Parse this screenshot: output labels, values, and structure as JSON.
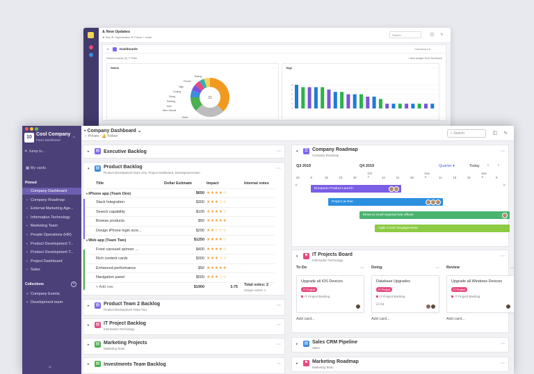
{
  "bg": {
    "title": "& New Updates",
    "subtitle": "★ Star  ⊕ Organization  ⊕ Follow  + Invite",
    "search": "Search",
    "dashboard_title": "Dashboards",
    "dashboard_select": "Dashboard ▾",
    "filter_left": "Select boards (2)   ▽ Filter",
    "filter_right": "+ Add widget   Give feedback",
    "card1_title": "Status",
    "card2_title": "Tags",
    "donut_center": "21",
    "donut_labels": [
      "Testing",
      "Frozen",
      "High",
      "Coding",
      "Doing",
      "Reeting",
      "Mini",
      "New Jobunit",
      "Done"
    ],
    "bar_axis": "Count",
    "bar_values": [
      10,
      9,
      9,
      9,
      9,
      8,
      7,
      7,
      6,
      6,
      6,
      5,
      5,
      4,
      2,
      2,
      2,
      2,
      2,
      2,
      2,
      2
    ],
    "bar_colors": [
      "#1f7bd6",
      "#2bb34a",
      "#7a55d8",
      "#1f7bd6",
      "#2bb34a",
      "#7a55d8",
      "#1f7bd6",
      "#2bb34a",
      "#7a55d8",
      "#1f7bd6",
      "#2bb34a",
      "#7a55d8",
      "#1f7bd6",
      "#2bb34a",
      "#7a55d8",
      "#1f7bd6",
      "#2bb34a",
      "#7a55d8",
      "#1f7bd6",
      "#2bb34a",
      "#7a55d8",
      "#1f7bd6"
    ]
  },
  "sidebar": {
    "company": "Cool Company",
    "company_sub": "Favro Dashboard",
    "logo": "10",
    "jump": "Jump to...",
    "my_cards": "My cards",
    "pinned_label": "Pinned",
    "pinned": [
      "Company Dashboard",
      "Company Roadmap",
      "External Marketing Age...",
      "Information Technology",
      "Marketing Team",
      "People Operations (HR)",
      "Product Development T...",
      "Product Development T...",
      "Project Dashboard",
      "Sales"
    ],
    "collections_label": "Collections",
    "collections": [
      "Company Events",
      "Development team"
    ],
    "collapse": "«"
  },
  "topbar": {
    "title": "Company Dashboard",
    "meta": "☆  Private  ·  🔔 Follow",
    "search": "Search"
  },
  "left_panels": {
    "executive": "Executive Backlog",
    "product": {
      "title": "Product Backlog",
      "subtitle": "Product Development Team One, Project Dashboard, Development team",
      "headers": [
        "Title",
        "Dollar Estimate",
        "Impact",
        "Internal votes"
      ],
      "rows": [
        {
          "title": "iPhone app (Team One)",
          "amount": "$650",
          "stars": "★★★★☆",
          "group": true,
          "vote": "2"
        },
        {
          "title": "Slack Integration",
          "amount": "$300",
          "stars": "★★★☆☆",
          "group": false,
          "vote": "1"
        },
        {
          "title": "Search capability",
          "amount": "$100",
          "stars": "★★★★☆",
          "group": false,
          "vote": "1"
        },
        {
          "title": "Browse products",
          "amount": "$50",
          "stars": "★★★★★",
          "group": false,
          "vote": ""
        },
        {
          "title": "Design iPhone login scre...",
          "amount": "$200",
          "stars": "★★☆☆☆",
          "group": false,
          "vote": ""
        },
        {
          "title": "Web app (Team Two)",
          "amount": "$1250",
          "stars": "★★★★☆",
          "group": true,
          "vote": ""
        },
        {
          "title": "Front carousel spinner ...",
          "amount": "$400",
          "stars": "★★★★☆",
          "group": false,
          "vote": ""
        },
        {
          "title": "Rich content cards",
          "amount": "$300",
          "stars": "★★★☆☆",
          "group": false,
          "vote": ""
        },
        {
          "title": "Enhanced performance",
          "amount": "$50",
          "stars": "★★★★★",
          "group": false,
          "vote": ""
        },
        {
          "title": "Navigation panel",
          "amount": "$500",
          "stars": "★★★☆☆",
          "group": false,
          "vote": ""
        }
      ],
      "add_row": "+ Add row",
      "total_amount": "$1900",
      "total_impact": "3.75",
      "total_votes": "Total votes: 2",
      "unique_voters": "Unique voters: 1"
    },
    "others": [
      {
        "title": "Product Team 2 Backlog",
        "sub": "Product Development Team Two",
        "color": "#7b68ee"
      },
      {
        "title": "IT Project Backlog",
        "sub": "Information Technology",
        "color": "#e54b7c"
      },
      {
        "title": "Marketing Projects",
        "sub": "Marketing Team",
        "color": "#4caf50"
      },
      {
        "title": "Investments Team Backlog",
        "sub": "",
        "color": "#4caf50"
      }
    ]
  },
  "roadmap": {
    "title": "Company Roadmap",
    "subtitle": "Company Roadmap",
    "q3": "Q3 2019",
    "q4": "Q4 2019",
    "zoom": "Quarter ▾",
    "today": "Today",
    "ticks": [
      "26",
      "9",
      "16",
      "23",
      "30",
      "Oct 7",
      "14",
      "21",
      "28",
      "Nov 4",
      "11",
      "18",
      "25",
      "Dec 2",
      "9"
    ],
    "bars": [
      {
        "label": "European Product Launch",
        "color": "#7b5ee6"
      },
      {
        "label": "Project at One",
        "color": "#2b8fe0"
      },
      {
        "label": "Move to small regional hub offices",
        "color": "#4ab46f"
      },
      {
        "label": "Agile Coach Engagements",
        "color": "#8ccb43"
      }
    ]
  },
  "it_board": {
    "title": "IT Projects Board",
    "subtitle": "Information Technology",
    "columns": [
      {
        "name": "To Do",
        "card": "Upgrade all iOS Devices",
        "tag": "IT Project",
        "board": "IT Project Backlog",
        "extra": "",
        "add": "Add card..."
      },
      {
        "name": "Doing",
        "card": "Database Upgrades",
        "tag": "IT Project",
        "board": "IT Project Backlog",
        "extra": "☑ 0/4",
        "add": "Add card..."
      },
      {
        "name": "Review",
        "card": "Upgrade all Windows Devices",
        "tag": "IT Project",
        "board": "IT Project Backlog",
        "extra": "",
        "add": "Add card..."
      }
    ]
  },
  "sales": {
    "title": "Sales CRM Pipeline",
    "sub": "Sales"
  },
  "marketing": {
    "title": "Marketing Roadmap",
    "sub": "Marketing Team"
  }
}
